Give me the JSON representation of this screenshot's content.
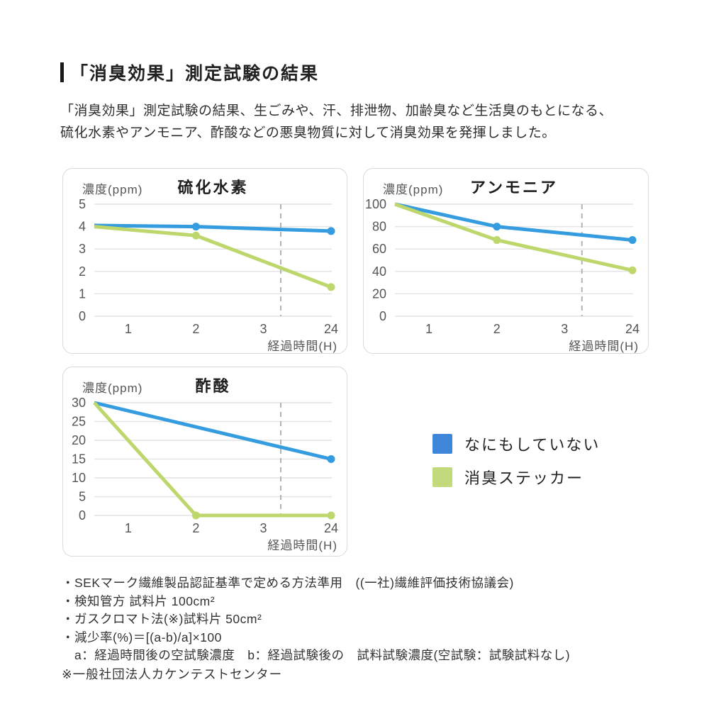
{
  "page": {
    "title": "「消臭効果」測定試験の結果",
    "intro_line1": "「消臭効果」測定試験の結果、生ごみや、汗、排泄物、加齢臭など生活臭のもとになる、",
    "intro_line2": "硫化水素やアンモニア、酢酸などの悪臭物質に対して消臭効果を発揮しました。"
  },
  "colors": {
    "blue_line": "#359cdf",
    "green_line": "#bdd76d",
    "grid": "#e4e4e4",
    "dash": "#b3b3b3",
    "tick_text": "#555555",
    "xlabel_text": "#555555",
    "panel_border": "#dadada"
  },
  "legend": {
    "items": [
      {
        "label": "なにもしていない",
        "color": "#3e86d9"
      },
      {
        "label": "消臭ステッカー",
        "color": "#c2da7c"
      }
    ]
  },
  "chart_data": [
    {
      "type": "line",
      "id": "hydrogen-sulfide",
      "title": "硫化水素",
      "ylabel": "濃度(ppm)",
      "xlabel": "経過時間(H)",
      "ylim": [
        0,
        5
      ],
      "yticks": [
        0,
        1,
        2,
        3,
        4,
        5
      ],
      "xticks": [
        1,
        2,
        3,
        24
      ],
      "axis_break_between": [
        3,
        24
      ],
      "grid": true,
      "series": [
        {
          "name": "なにもしていない",
          "color_key": "blue",
          "x": [
            0,
            2,
            24
          ],
          "y": [
            4.05,
            4.0,
            3.8
          ],
          "markers": [
            2,
            24
          ]
        },
        {
          "name": "消臭ステッカー",
          "color_key": "green",
          "x": [
            0,
            2,
            24
          ],
          "y": [
            4.0,
            3.6,
            1.3
          ],
          "markers": [
            2,
            24
          ]
        }
      ]
    },
    {
      "type": "line",
      "id": "ammonia",
      "title": "アンモニア",
      "ylabel": "濃度(ppm)",
      "xlabel": "経過時間(H)",
      "ylim": [
        0,
        100
      ],
      "yticks": [
        0,
        20,
        40,
        60,
        80,
        100
      ],
      "xticks": [
        1,
        2,
        3,
        24
      ],
      "axis_break_between": [
        3,
        24
      ],
      "grid": true,
      "series": [
        {
          "name": "なにもしていない",
          "color_key": "blue",
          "x": [
            0,
            2,
            24
          ],
          "y": [
            100,
            80,
            68
          ],
          "markers": [
            2,
            24
          ]
        },
        {
          "name": "消臭ステッカー",
          "color_key": "green",
          "x": [
            0,
            2,
            24
          ],
          "y": [
            100,
            68,
            41
          ],
          "markers": [
            2,
            24
          ]
        }
      ]
    },
    {
      "type": "line",
      "id": "acetic-acid",
      "title": "酢酸",
      "ylabel": "濃度(ppm)",
      "xlabel": "経過時間(H)",
      "ylim": [
        0,
        30
      ],
      "yticks": [
        0,
        5,
        10,
        15,
        20,
        25,
        30
      ],
      "xticks": [
        1,
        2,
        3,
        24
      ],
      "axis_break_between": [
        3,
        24
      ],
      "grid": true,
      "series": [
        {
          "name": "なにもしていない",
          "color_key": "blue",
          "x": [
            0,
            24
          ],
          "y": [
            30,
            15
          ],
          "markers": [
            24
          ]
        },
        {
          "name": "消臭ステッカー",
          "color_key": "green",
          "x": [
            0,
            2,
            24
          ],
          "y": [
            30,
            0,
            0
          ],
          "markers": [
            2,
            24
          ]
        }
      ]
    }
  ],
  "footnotes": {
    "lines": [
      "・SEKマーク繊維製品認証基準で定める方法準用　((一社)繊維評価技術協議会)",
      "・検知管方 試料片 100cm²",
      "・ガスクロマト法(※)試料片 50cm²",
      "・減少率(%)＝[(a-b)/a]×100",
      "　a：経過時間後の空試験濃度　b：経過試験後の　試料試験濃度(空試験：試験試料なし)"
    ],
    "source_note": "※一般社団法人カケンテストセンター"
  }
}
